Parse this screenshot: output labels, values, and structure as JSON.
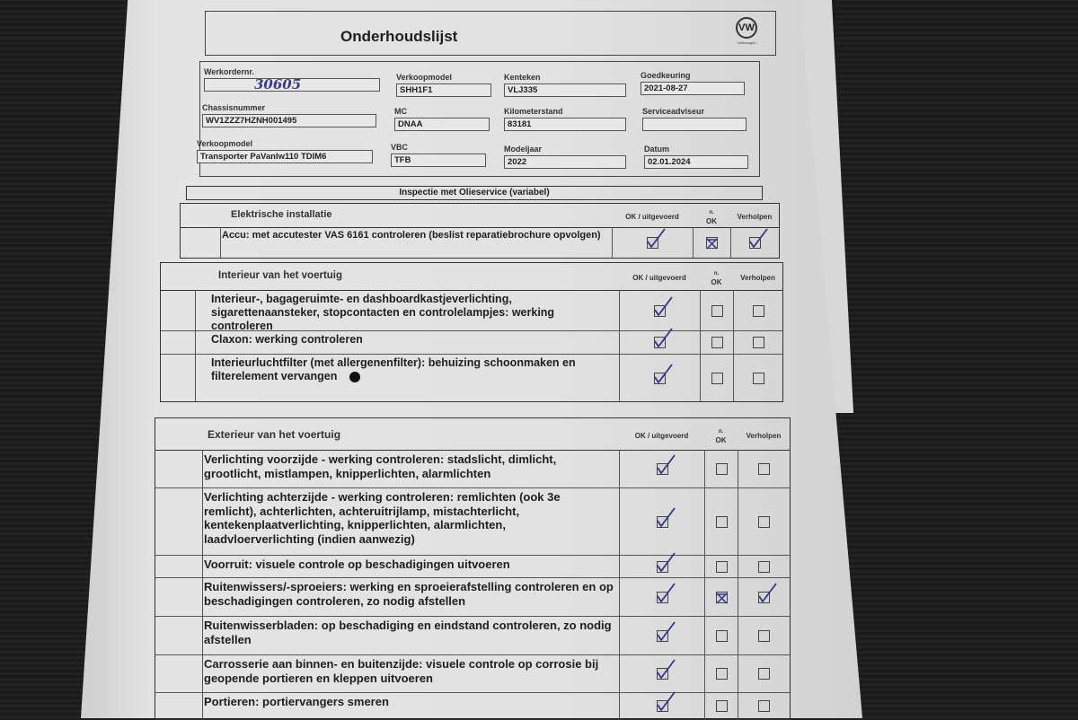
{
  "document": {
    "title": "Onderhoudslijst",
    "logo": {
      "icon": "vw-logo-icon",
      "text": "Volkswagen"
    }
  },
  "fields": {
    "werkordernr": {
      "label": "Werkordernr.",
      "value": "30605"
    },
    "verkoopmodel_code": {
      "label": "Verkoopmodel",
      "value": "SHH1F1"
    },
    "kenteken": {
      "label": "Kenteken",
      "value": "VLJ335"
    },
    "goedkeuring": {
      "label": "Goedkeuring",
      "value": "2021-08-27"
    },
    "chassisnummer": {
      "label": "Chassisnummer",
      "value": "WV1ZZZ7HZNH001495"
    },
    "mc": {
      "label": "MC",
      "value": "DNAA"
    },
    "kilometerstand": {
      "label": "Kilometerstand",
      "value": "83181"
    },
    "serviceadviseur": {
      "label": "Serviceadviseur",
      "value": ""
    },
    "verkoopmodel": {
      "label": "Verkoopmodel",
      "value": "Transporter PaVanlw110 TDIM6"
    },
    "vbc": {
      "label": "VBC",
      "value": "TFB"
    },
    "modeljaar": {
      "label": "Modeljaar",
      "value": "2022"
    },
    "datum": {
      "label": "Datum",
      "value": "02.01.2024"
    }
  },
  "inspection_title": "Inspectie met Olieservice (variabel)",
  "columns": {
    "ok": "OK / uitgevoerd",
    "nok_top": "n.",
    "nok_bottom": "OK",
    "fixed": "Verholpen"
  },
  "check_color": "#33338f",
  "sections": [
    {
      "title": "Elektrische installatie",
      "rows": [
        {
          "text": "Accu: met accutester VAS 6161 controleren (beslist reparatiebrochure opvolgen)",
          "ok": "checked",
          "nok": "crossed",
          "fixed": "checked"
        }
      ]
    },
    {
      "title": "Interieur van het voertuig",
      "rows": [
        {
          "text": "Interieur-, bagageruimte- en dashboardkastjeverlichting, sigarettenaansteker, stopcontacten en controlelampjes: werking controleren",
          "ok": "checked",
          "nok": "empty",
          "fixed": "empty"
        },
        {
          "text": "Claxon: werking controleren",
          "ok": "checked",
          "nok": "empty",
          "fixed": "empty"
        },
        {
          "text": "Interieurluchtfilter (met allergenenfilter): behuizing schoonmaken en filterelement vervangen",
          "ok": "checked",
          "nok": "empty",
          "fixed": "empty"
        }
      ]
    },
    {
      "title": "Exterieur van het voertuig",
      "rows": [
        {
          "text": "Verlichting voorzijde - werking controleren: stadslicht, dimlicht, grootlicht, mistlampen, knipperlichten, alarmlichten",
          "ok": "checked",
          "nok": "empty",
          "fixed": "empty"
        },
        {
          "text": "Verlichting achterzijde - werking controleren: remlichten (ook 3e remlicht), achterlichten, achteruitrijlamp, mistachterlicht, kentekenplaatverlichting, knipperlichten, alarmlichten, laadvloerverlichting (indien aanwezig)",
          "ok": "checked",
          "nok": "empty",
          "fixed": "empty"
        },
        {
          "text": "Voorruit: visuele controle op beschadigingen uitvoeren",
          "ok": "checked",
          "nok": "empty",
          "fixed": "empty"
        },
        {
          "text": "Ruitenwissers/-sproeiers: werking en sproeierafstelling controleren en op beschadigingen controleren, zo nodig afstellen",
          "ok": "checked",
          "nok": "crossed",
          "fixed": "checked"
        },
        {
          "text": "Ruitenwisserbladen: op beschadiging en eindstand controleren, zo nodig afstellen",
          "ok": "checked",
          "nok": "empty",
          "fixed": "empty"
        },
        {
          "text": "Carrosserie aan binnen- en buitenzijde: visuele controle op corrosie bij geopende portieren en kleppen uitvoeren",
          "ok": "checked",
          "nok": "empty",
          "fixed": "empty"
        },
        {
          "text": "Portieren: portiervangers smeren",
          "ok": "checked",
          "nok": "empty",
          "fixed": "empty"
        }
      ]
    }
  ]
}
